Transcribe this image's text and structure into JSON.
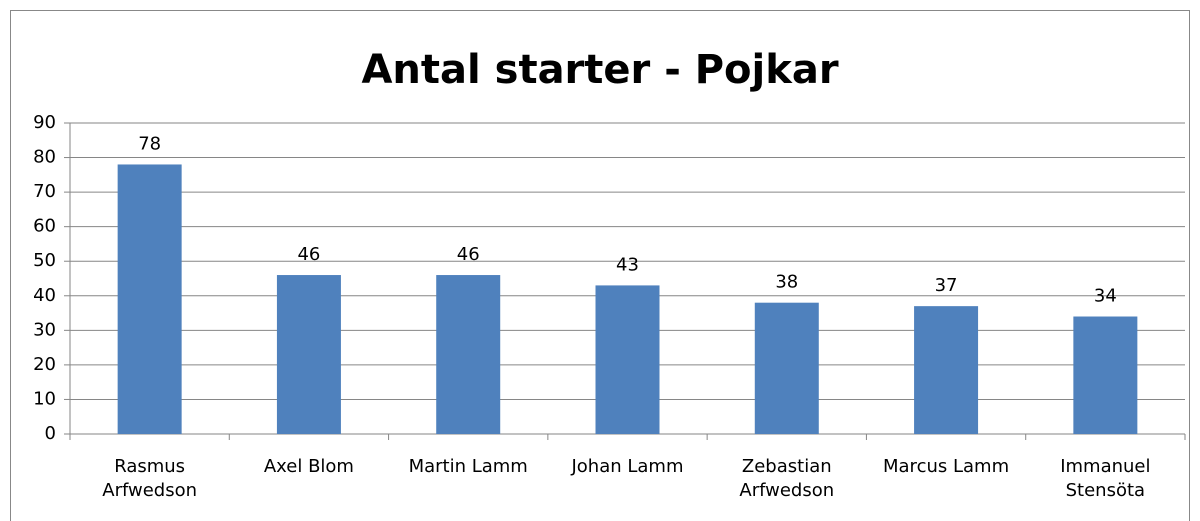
{
  "chart_data": {
    "type": "bar",
    "title": "Antal starter - Pojkar",
    "categories": [
      "Rasmus Arfwedson",
      "Axel Blom",
      "Martin Lamm",
      "Johan Lamm",
      "Zebastian Arfwedson",
      "Marcus Lamm",
      "Immanuel Stensöta"
    ],
    "values": [
      78,
      46,
      46,
      43,
      38,
      37,
      34
    ],
    "color": "#4f81bd",
    "ylim": [
      0,
      90
    ],
    "yticks": [
      0,
      10,
      20,
      30,
      40,
      50,
      60,
      70,
      80,
      90
    ],
    "grid": true
  }
}
